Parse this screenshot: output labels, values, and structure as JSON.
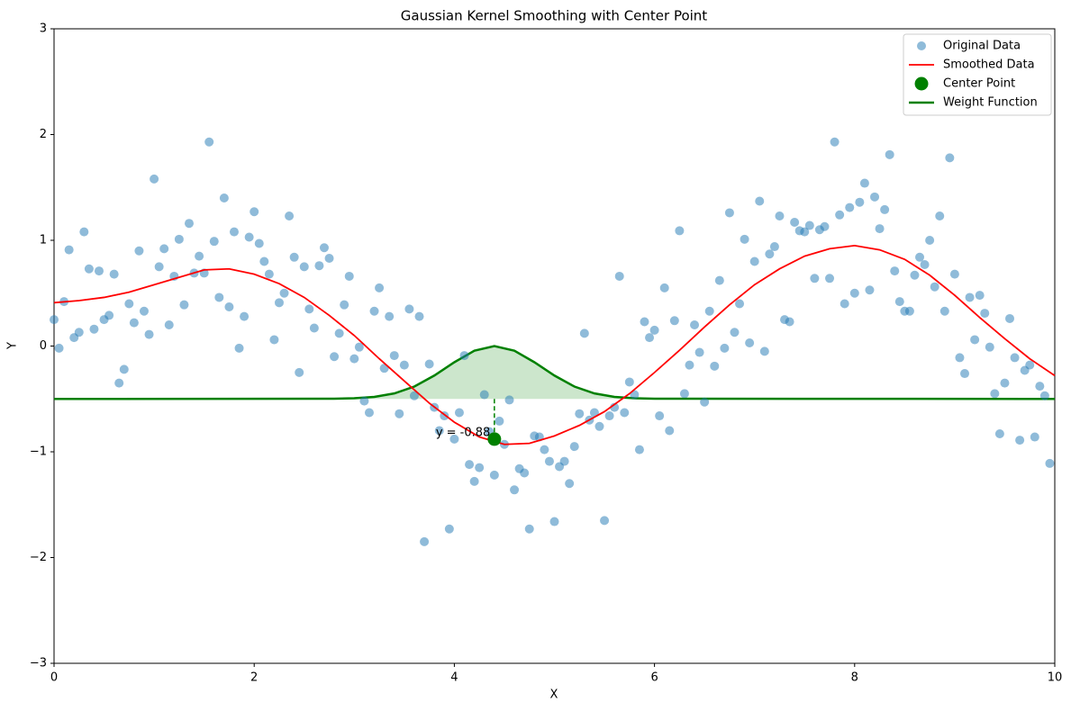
{
  "chart_data": {
    "type": "scatter",
    "title": "Gaussian Kernel Smoothing with Center Point",
    "xlabel": "X",
    "ylabel": "Y",
    "xlim": [
      0,
      10
    ],
    "ylim": [
      -3,
      3
    ],
    "xticks": [
      0,
      2,
      4,
      6,
      8,
      10
    ],
    "yticks": [
      {
        "value": -3,
        "label": "−3"
      },
      {
        "value": -2,
        "label": "−2"
      },
      {
        "value": -1,
        "label": "−1"
      },
      0,
      1,
      2,
      3
    ],
    "legend": "upper right",
    "series": [
      {
        "name": "Original Data",
        "type": "scatter",
        "color": "#1f77b4",
        "x": [
          0,
          0.05,
          0.1,
          0.15,
          0.2,
          0.25,
          0.3,
          0.35,
          0.4,
          0.45,
          0.5,
          0.55,
          0.6,
          0.65,
          0.7,
          0.75,
          0.8,
          0.85,
          0.9,
          0.95,
          1,
          1.05,
          1.1,
          1.15,
          1.2,
          1.25,
          1.3,
          1.35,
          1.4,
          1.45,
          1.5,
          1.55,
          1.6,
          1.65,
          1.7,
          1.75,
          1.8,
          1.85,
          1.9,
          1.95,
          2,
          2.05,
          2.1,
          2.15,
          2.2,
          2.25,
          2.3,
          2.35,
          2.4,
          2.45,
          2.5,
          2.55,
          2.6,
          2.65,
          2.7,
          2.75,
          2.8,
          2.85,
          2.9,
          2.95,
          3,
          3.05,
          3.1,
          3.15,
          3.2,
          3.25,
          3.3,
          3.35,
          3.4,
          3.45,
          3.5,
          3.55,
          3.6,
          3.65,
          3.7,
          3.75,
          3.8,
          3.85,
          3.9,
          3.95,
          4,
          4.05,
          4.1,
          4.15,
          4.2,
          4.25,
          4.3,
          4.35,
          4.4,
          4.45,
          4.5,
          4.55,
          4.6,
          4.65,
          4.7,
          4.75,
          4.8,
          4.85,
          4.9,
          4.95,
          5,
          5.05,
          5.1,
          5.15,
          5.2,
          5.25,
          5.3,
          5.35,
          5.4,
          5.45,
          5.5,
          5.55,
          5.6,
          5.65,
          5.7,
          5.75,
          5.8,
          5.85,
          5.9,
          5.95,
          6,
          6.05,
          6.1,
          6.15,
          6.2,
          6.25,
          6.3,
          6.35,
          6.4,
          6.45,
          6.5,
          6.55,
          6.6,
          6.65,
          6.7,
          6.75,
          6.8,
          6.85,
          6.9,
          6.95,
          7,
          7.05,
          7.1,
          7.15,
          7.2,
          7.25,
          7.3,
          7.35,
          7.4,
          7.45,
          7.5,
          7.55,
          7.6,
          7.65,
          7.7,
          7.75,
          7.8,
          7.85,
          7.9,
          7.95,
          8,
          8.05,
          8.1,
          8.15,
          8.2,
          8.25,
          8.3,
          8.35,
          8.4,
          8.45,
          8.5,
          8.55,
          8.6,
          8.65,
          8.7,
          8.75,
          8.8,
          8.85,
          8.9,
          8.95,
          9,
          9.05,
          9.1,
          9.15,
          9.2,
          9.25,
          9.3,
          9.35,
          9.4,
          9.45,
          9.5,
          9.55,
          9.6,
          9.65,
          9.7,
          9.75,
          9.8,
          9.85,
          9.9,
          9.95
        ],
        "values": [
          0.25,
          -0.02,
          0.42,
          0.91,
          0.08,
          0.13,
          1.08,
          0.73,
          0.16,
          0.71,
          0.25,
          0.29,
          0.68,
          -0.35,
          -0.22,
          0.4,
          0.22,
          0.9,
          0.33,
          0.11,
          1.58,
          0.75,
          0.92,
          0.2,
          0.66,
          1.01,
          0.39,
          1.16,
          0.69,
          0.85,
          0.69,
          1.93,
          0.99,
          0.46,
          1.4,
          0.37,
          1.08,
          -0.02,
          0.28,
          1.03,
          1.27,
          0.97,
          0.8,
          0.68,
          0.06,
          0.41,
          0.5,
          1.23,
          0.84,
          -0.25,
          0.75,
          0.35,
          0.17,
          0.76,
          0.93,
          0.83,
          -0.1,
          0.12,
          0.39,
          0.66,
          -0.12,
          -0.01,
          -0.52,
          -0.63,
          0.33,
          0.55,
          -0.21,
          0.28,
          -0.09,
          -0.64,
          -0.18,
          0.35,
          -0.47,
          0.28,
          -1.85,
          -0.17,
          -0.58,
          -0.8,
          -0.66,
          -1.73,
          -0.88,
          -0.63,
          -0.09,
          -1.12,
          -1.28,
          -1.15,
          -0.46,
          -0.81,
          -1.22,
          -0.71,
          -0.93,
          -0.51,
          -1.36,
          -1.16,
          -1.2,
          -1.73,
          -0.85,
          -0.86,
          -0.98,
          -1.09,
          -1.66,
          -1.14,
          -1.09,
          -1.3,
          -0.95,
          -0.64,
          0.12,
          -0.7,
          -0.63,
          -0.76,
          -1.65,
          -0.66,
          -0.58,
          0.66,
          -0.63,
          -0.34,
          -0.46,
          -0.98,
          0.23,
          0.08,
          0.15,
          -0.66,
          0.55,
          -0.8,
          0.24,
          1.09,
          -0.45,
          -0.18,
          0.2,
          -0.06,
          -0.53,
          0.33,
          -0.19,
          0.62,
          -0.02,
          1.26,
          0.13,
          0.4,
          1.01,
          0.03,
          0.8,
          1.37,
          -0.05,
          0.87,
          0.94,
          1.23,
          0.25,
          0.23,
          1.17,
          1.09,
          1.08,
          1.14,
          0.64,
          1.1,
          1.13,
          0.64,
          1.93,
          1.24,
          0.4,
          1.31,
          0.5,
          1.36,
          1.54,
          0.53,
          1.41,
          1.11,
          1.29,
          1.81,
          0.71,
          0.42,
          0.33,
          0.33,
          0.67,
          0.84,
          0.77,
          1.0,
          0.56,
          1.23,
          0.33,
          1.78,
          0.68,
          -0.11,
          -0.26,
          0.46,
          0.06,
          0.48,
          0.31,
          -0.01,
          -0.45,
          -0.83,
          -0.35,
          0.26,
          -0.11,
          -0.89,
          -0.23,
          -0.18,
          -0.86,
          -0.38,
          -0.47,
          -1.11
        ]
      },
      {
        "name": "Smoothed Data",
        "type": "line",
        "color": "#ff0000",
        "x": [
          0,
          0.25,
          0.5,
          0.75,
          1,
          1.25,
          1.5,
          1.75,
          2,
          2.25,
          2.5,
          2.75,
          3,
          3.25,
          3.5,
          3.75,
          4,
          4.25,
          4.5,
          4.75,
          5,
          5.25,
          5.5,
          5.75,
          6,
          6.25,
          6.5,
          6.75,
          7,
          7.25,
          7.5,
          7.75,
          8,
          8.25,
          8.5,
          8.75,
          9,
          9.25,
          9.5,
          9.75,
          10
        ],
        "values": [
          0.41,
          0.43,
          0.46,
          0.51,
          0.58,
          0.65,
          0.72,
          0.73,
          0.68,
          0.59,
          0.46,
          0.29,
          0.1,
          -0.12,
          -0.33,
          -0.54,
          -0.72,
          -0.86,
          -0.93,
          -0.92,
          -0.85,
          -0.75,
          -0.62,
          -0.45,
          -0.25,
          -0.04,
          0.18,
          0.39,
          0.58,
          0.73,
          0.85,
          0.92,
          0.95,
          0.91,
          0.82,
          0.67,
          0.48,
          0.27,
          0.07,
          -0.12,
          -0.28
        ]
      },
      {
        "name": "Center Point",
        "type": "point",
        "color": "#008000",
        "x": [
          4.4
        ],
        "values": [
          -0.88
        ]
      },
      {
        "name": "Weight Function",
        "type": "area",
        "color": "#008000",
        "x": [
          0,
          2.8,
          3.0,
          3.2,
          3.4,
          3.6,
          3.8,
          4.0,
          4.2,
          4.4,
          4.6,
          4.8,
          5.0,
          5.2,
          5.4,
          5.6,
          5.8,
          6.0,
          10
        ],
        "values": [
          -0.5,
          -0.498,
          -0.494,
          -0.481,
          -0.448,
          -0.383,
          -0.279,
          -0.153,
          -0.044,
          0,
          -0.044,
          -0.153,
          -0.279,
          -0.383,
          -0.448,
          -0.481,
          -0.494,
          -0.498,
          -0.5
        ]
      }
    ],
    "annotations": [
      {
        "text": "y = -0.88"
      }
    ]
  }
}
